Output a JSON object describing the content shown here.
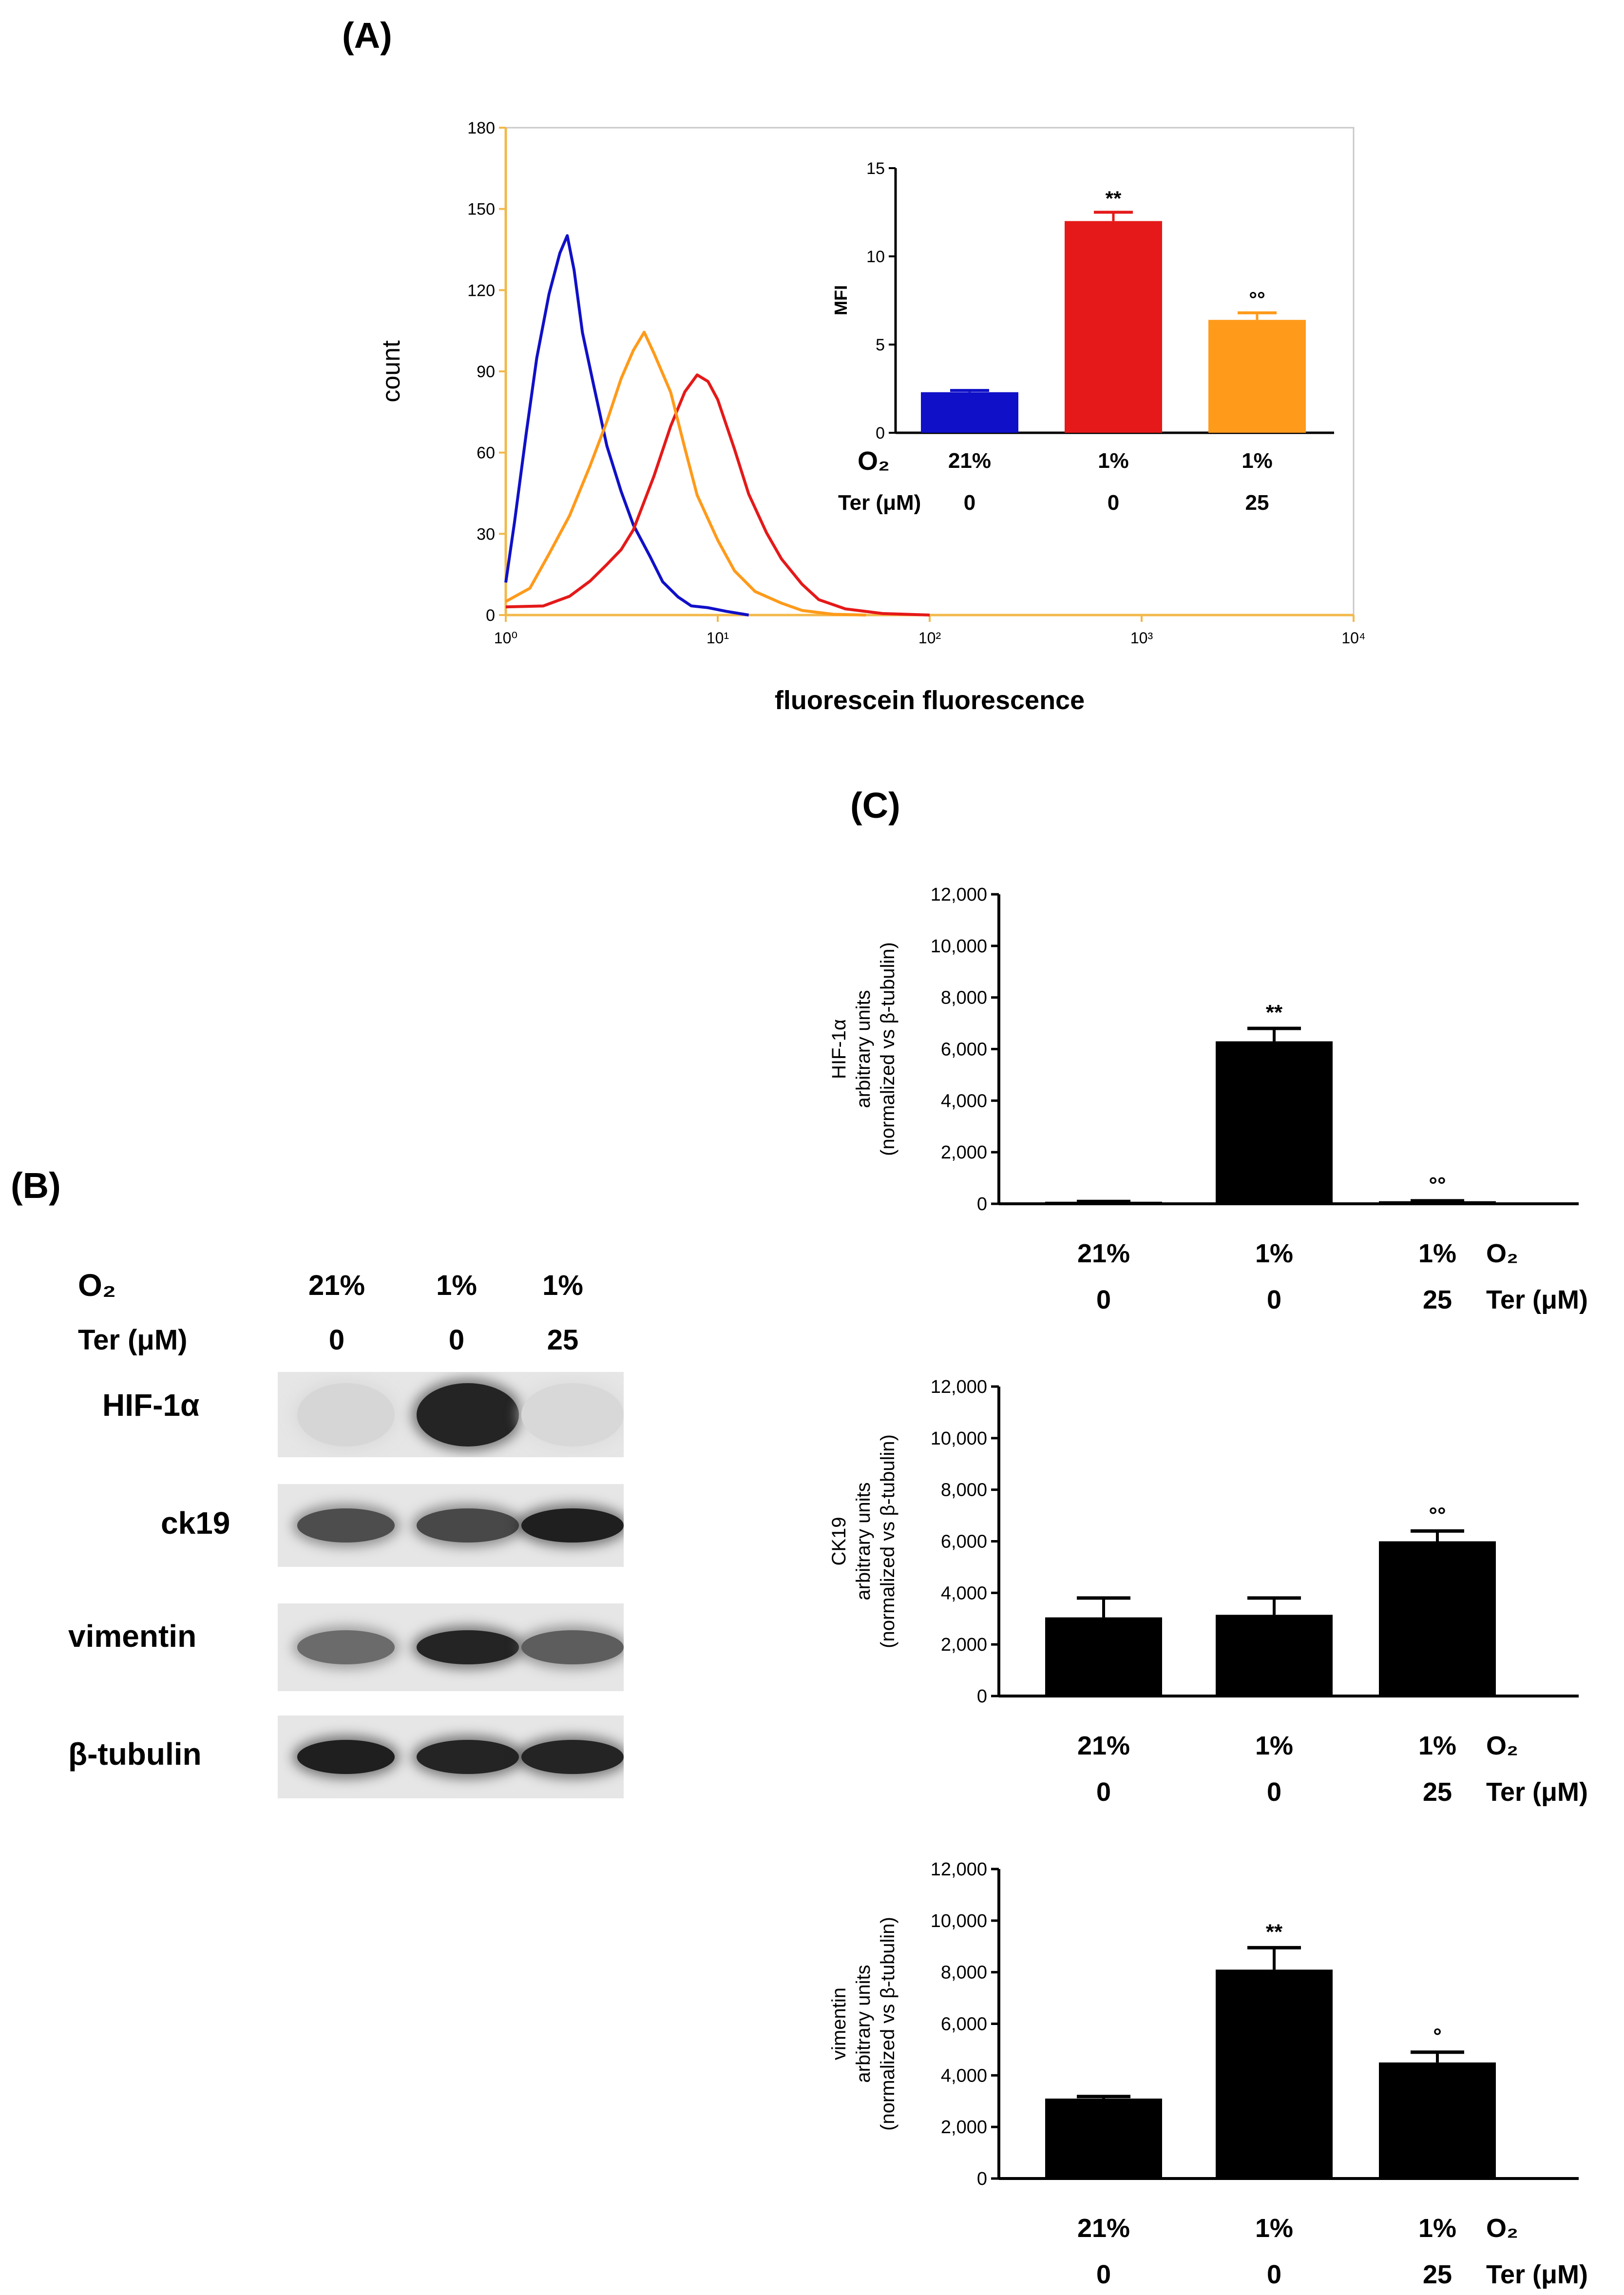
{
  "panels": {
    "a": "(A)",
    "b": "(B)",
    "c": "(C)"
  },
  "colors": {
    "blue": "#1010c8",
    "red": "#e51919",
    "orange": "#ff9a1a",
    "bar": "#000000",
    "axis_a": "#f2b84a"
  },
  "chart_data": [
    {
      "id": "histogram",
      "type": "line",
      "title": "",
      "xlabel": "fluorescein fluorescence",
      "ylabel": "count",
      "x_scale": "log",
      "xlim": [
        1,
        10000
      ],
      "ylim": [
        0,
        180
      ],
      "x_tick_labels": [
        "10⁰",
        "10¹",
        "10²",
        "10³",
        "10⁴"
      ],
      "x_tick_values": [
        1,
        10,
        100,
        1000,
        10000
      ],
      "y_ticks": [
        0,
        30,
        60,
        90,
        120,
        150,
        180
      ],
      "series": [
        {
          "name": "21% O2, Ter 0",
          "color": "#1010c8",
          "x": [
            1.0,
            1.1,
            1.25,
            1.4,
            1.6,
            1.8,
            1.95,
            2.1,
            2.3,
            2.6,
            3.0,
            3.5,
            4.0,
            4.8,
            5.5,
            6.5,
            7.5,
            9.0,
            11,
            14
          ],
          "y": [
            12,
            35,
            68,
            95,
            118,
            133,
            140,
            128,
            105,
            85,
            62,
            45,
            33,
            22,
            13,
            7,
            3,
            2,
            1,
            0
          ]
        },
        {
          "name": "1% O2, Ter 0",
          "color": "#e51919",
          "x": [
            1.0,
            1.5,
            2.0,
            2.5,
            3.0,
            3.5,
            4.0,
            5.0,
            6.0,
            7.0,
            8.0,
            9.0,
            10,
            12,
            14,
            17,
            20,
            25,
            30,
            40,
            60,
            100
          ],
          "y": [
            3,
            4,
            7,
            12,
            18,
            24,
            32,
            52,
            70,
            82,
            88,
            86,
            80,
            62,
            45,
            30,
            20,
            11,
            6,
            3,
            1,
            0
          ]
        },
        {
          "name": "1% O2, Ter 25",
          "color": "#ff9a1a",
          "x": [
            1.0,
            1.3,
            1.6,
            2.0,
            2.5,
            3.0,
            3.5,
            4.0,
            4.5,
            5.0,
            6.0,
            7.0,
            8.0,
            10,
            12,
            15,
            20,
            25,
            35,
            50
          ],
          "y": [
            5,
            10,
            22,
            36,
            55,
            72,
            88,
            98,
            104,
            96,
            82,
            62,
            45,
            28,
            16,
            8,
            4,
            2,
            1,
            0
          ]
        }
      ]
    },
    {
      "id": "mfi-inset",
      "type": "bar",
      "title": "",
      "ylabel": "MFI",
      "ylim": [
        0,
        15
      ],
      "y_ticks": [
        0,
        5,
        10,
        15
      ],
      "row_labels": [
        "O₂",
        "Ter (μM)"
      ],
      "categories": [
        "21%",
        "1%",
        "1%"
      ],
      "categories_ter": [
        "0",
        "0",
        "25"
      ],
      "values": [
        2.3,
        12.0,
        6.4
      ],
      "errors": [
        0.1,
        0.5,
        0.4
      ],
      "colors": [
        "#1010c8",
        "#e51919",
        "#ff9a1a"
      ],
      "annotations": [
        "",
        "**",
        "°°"
      ]
    },
    {
      "id": "hif1a",
      "type": "bar",
      "ylabel_lines": [
        "HIF-1α",
        "arbitrary units",
        "(normalized vs β-tubulin)"
      ],
      "ylim": [
        0,
        12000
      ],
      "y_ticks": [
        0,
        2000,
        4000,
        6000,
        8000,
        10000,
        12000
      ],
      "y_tick_labels": [
        "0",
        "2,000",
        "4,000",
        "6,000",
        "8,000",
        "10,000",
        "12,000"
      ],
      "categories": [
        "21%",
        "1%",
        "1%"
      ],
      "categories_ter": [
        "0",
        "0",
        "25"
      ],
      "row_labels": [
        "O₂",
        "Ter (μM)"
      ],
      "values": [
        80,
        6300,
        100
      ],
      "errors": [
        10,
        500,
        15
      ],
      "annotations": [
        "",
        "**",
        "°°"
      ]
    },
    {
      "id": "ck19",
      "type": "bar",
      "ylabel_lines": [
        "CK19",
        "arbitrary units",
        "(normalized vs β-tubulin)"
      ],
      "ylim": [
        0,
        12000
      ],
      "y_ticks": [
        0,
        2000,
        4000,
        6000,
        8000,
        10000,
        12000
      ],
      "y_tick_labels": [
        "0",
        "2,000",
        "4,000",
        "6,000",
        "8,000",
        "10,000",
        "12,000"
      ],
      "categories": [
        "21%",
        "1%",
        "1%"
      ],
      "categories_ter": [
        "0",
        "0",
        "25"
      ],
      "row_labels": [
        "O₂",
        "Ter (μM)"
      ],
      "values": [
        3050,
        3150,
        6000
      ],
      "errors": [
        750,
        650,
        400
      ],
      "annotations": [
        "",
        "",
        "°°"
      ]
    },
    {
      "id": "vimentin",
      "type": "bar",
      "ylabel_lines": [
        "vimentin",
        "arbitrary units",
        "(normalized vs β-tubulin)"
      ],
      "ylim": [
        0,
        12000
      ],
      "y_ticks": [
        0,
        2000,
        4000,
        6000,
        8000,
        10000,
        12000
      ],
      "y_tick_labels": [
        "0",
        "2,000",
        "4,000",
        "6,000",
        "8,000",
        "10,000",
        "12,000"
      ],
      "categories": [
        "21%",
        "1%",
        "1%"
      ],
      "categories_ter": [
        "0",
        "0",
        "25"
      ],
      "row_labels": [
        "O₂",
        "Ter (μM)"
      ],
      "values": [
        3100,
        8100,
        4500
      ],
      "errors": [
        80,
        850,
        400
      ],
      "annotations": [
        "",
        "**",
        "°"
      ]
    }
  ],
  "western_blot": {
    "header_o2": "O₂",
    "header_ter": "Ter (μM)",
    "o2_values": [
      "21%",
      "1%",
      "1%"
    ],
    "ter_values": [
      "0",
      "0",
      "25"
    ],
    "rows": [
      {
        "label": "HIF-1α",
        "bands": [
          0.03,
          0.9,
          0.02
        ]
      },
      {
        "label": "ck19",
        "bands": [
          0.7,
          0.72,
          0.92
        ]
      },
      {
        "label": "vimentin",
        "bands": [
          0.55,
          0.9,
          0.62
        ]
      },
      {
        "label": "β-tubulin",
        "bands": [
          0.92,
          0.9,
          0.9
        ]
      }
    ]
  }
}
